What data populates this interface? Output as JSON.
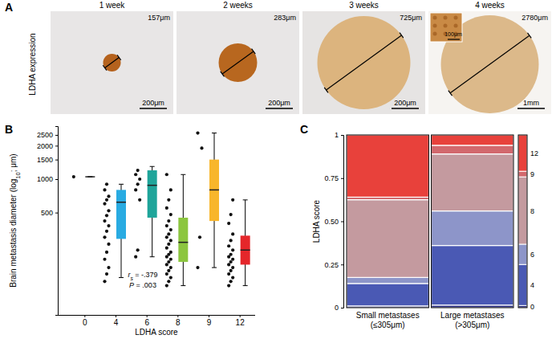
{
  "chart_data": [
    {
      "type": "image",
      "panel_label": "A",
      "y_label": "LDHA expression",
      "panels": [
        {
          "title": "1 week",
          "diameter": "157μm",
          "scale_bar": "200μm"
        },
        {
          "title": "2 weeks",
          "diameter": "283μm",
          "scale_bar": "200μm"
        },
        {
          "title": "3 weeks",
          "diameter": "725μm",
          "scale_bar": "200μm"
        },
        {
          "title": "4 weeks",
          "diameter": "2780μm",
          "scale_bar": "1mm",
          "inset_scale_bar": "100μm"
        }
      ]
    },
    {
      "type": "box",
      "panel_label": "B",
      "x_label": "LDHA score",
      "y_label": {
        "text": "Brain metastasis diameter (log",
        "subscript": "10",
        "suffix": "; μm)"
      },
      "log": "y",
      "categories": [
        "0",
        "4",
        "6",
        "8",
        "9",
        "12"
      ],
      "colors": [
        "#555555",
        "#29abe2",
        "#1fa59a",
        "#8cc63f",
        "#f8b62b",
        "#e5262a"
      ],
      "points": [
        [
          1050
        ],
        [
          120,
          140,
          160,
          190,
          220,
          260,
          300,
          340,
          380,
          420,
          470,
          520,
          600,
          650,
          700,
          800,
          900
        ],
        [
          200,
          230,
          650,
          800,
          900,
          1000,
          1100,
          1200
        ],
        [
          110,
          120,
          130,
          140,
          150,
          160,
          170,
          180,
          190,
          200,
          210,
          220,
          240,
          260,
          280,
          300,
          320,
          350,
          380,
          420,
          480,
          550,
          650,
          800,
          1100
        ],
        [
          160,
          300,
          1900,
          2600
        ],
        [
          110,
          120,
          130,
          140,
          150,
          160,
          170,
          180,
          190,
          200,
          210,
          230,
          250,
          280,
          320,
          400,
          480,
          650
        ]
      ],
      "boxes": [
        {
          "min": 1050,
          "q1": 1050,
          "median": 1050,
          "q3": 1050,
          "max": 1050
        },
        {
          "min": 130,
          "q1": 290,
          "median": 620,
          "q3": 800,
          "max": 900
        },
        {
          "min": 200,
          "q1": 450,
          "median": 880,
          "q3": 1200,
          "max": 1300
        },
        {
          "min": 110,
          "q1": 180,
          "median": 270,
          "q3": 450,
          "max": 1100
        },
        {
          "min": 160,
          "q1": 420,
          "median": 800,
          "q3": 1500,
          "max": 2600
        },
        {
          "min": 110,
          "q1": 170,
          "median": 230,
          "q3": 310,
          "max": 650
        }
      ],
      "ylim": [
        60,
        3000
      ],
      "yticks": [
        500,
        1000,
        1500,
        2000,
        2500
      ],
      "annotations": [
        {
          "text": "r",
          "subscript": "s",
          "suffix": " = -.379"
        },
        {
          "text": "P",
          "suffix": " = .003"
        }
      ]
    },
    {
      "type": "mosaic",
      "panel_label": "C",
      "y_label": "LDHA score",
      "stacked": true,
      "legend": "right",
      "categories": [
        [
          "Small metastases",
          "(≤305μm)"
        ],
        [
          "Large metastases",
          "(>305μm)"
        ]
      ],
      "series": [
        {
          "name": "0",
          "color": "#2b2f86",
          "values": [
            0.01,
            0.015
          ]
        },
        {
          "name": "4",
          "color": "#4a59b4",
          "values": [
            0.13,
            0.345
          ]
        },
        {
          "name": "6",
          "color": "#8d95c9",
          "values": [
            0.035,
            0.2
          ]
        },
        {
          "name": "8",
          "color": "#c49a9f",
          "values": [
            0.45,
            0.33
          ]
        },
        {
          "name": "9",
          "color": "#d2686d",
          "values": [
            0.015,
            0.05
          ]
        },
        {
          "name": "12",
          "color": "#e8413b",
          "values": [
            0.36,
            0.06
          ]
        }
      ],
      "ylim": [
        0,
        1
      ],
      "yticks": [
        0,
        0.25,
        {
          "value": 0.5,
          "label": "0.50"
        },
        0.75,
        1
      ]
    }
  ]
}
